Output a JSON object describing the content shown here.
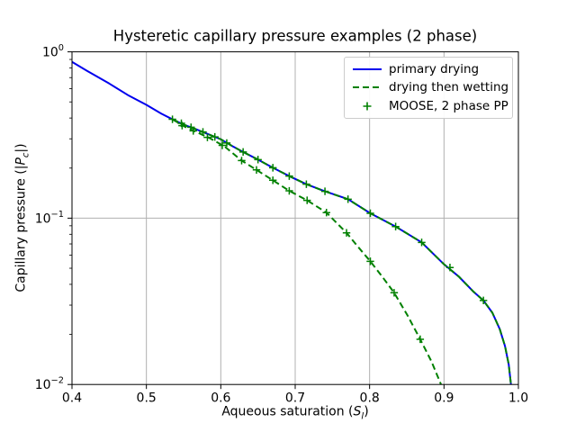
{
  "chart_data": {
    "type": "line",
    "title": "Hysteretic capillary pressure examples (2 phase)",
    "xlabel": {
      "prefix": "Aqueous saturation (",
      "var": "S",
      "sub": "l",
      "suffix": ")"
    },
    "ylabel": {
      "prefix": "Capillary pressure (|",
      "var": "P",
      "sub": "c",
      "suffix": "|)"
    },
    "grid": true,
    "x_axis": {
      "scale": "linear",
      "min": 0.4,
      "max": 1.0,
      "ticks": [
        0.4,
        0.5,
        0.6,
        0.7,
        0.8,
        0.9,
        1.0
      ],
      "tick_labels": [
        "0.4",
        "0.5",
        "0.6",
        "0.7",
        "0.8",
        "0.9",
        "1.0"
      ]
    },
    "y_axis": {
      "scale": "log",
      "min": 0.01,
      "max": 1.0,
      "ticks": [
        {
          "value": 1,
          "base": "10",
          "exp": "0"
        },
        {
          "value": 0.1,
          "base": "10",
          "exp": "−1"
        },
        {
          "value": 0.01,
          "base": "10",
          "exp": "−2"
        }
      ]
    },
    "legend": {
      "position": "upper right",
      "entries": [
        {
          "label": "primary drying",
          "color": "#0000ee",
          "style": "solid-line"
        },
        {
          "label": "drying then wetting",
          "color": "#008000",
          "style": "dashed-line"
        },
        {
          "label": "MOOSE, 2 phase PP",
          "color": "#008000",
          "style": "plus-marker"
        }
      ]
    },
    "series": [
      {
        "name": "primary drying",
        "type": "line",
        "style": "solid",
        "color": "#0000ee",
        "width": 2,
        "points": [
          [
            0.4,
            0.87
          ],
          [
            0.42,
            0.77
          ],
          [
            0.45,
            0.645
          ],
          [
            0.475,
            0.55
          ],
          [
            0.5,
            0.48
          ],
          [
            0.52,
            0.425
          ],
          [
            0.535,
            0.393
          ],
          [
            0.55,
            0.365
          ],
          [
            0.565,
            0.345
          ],
          [
            0.58,
            0.324
          ],
          [
            0.6,
            0.298
          ],
          [
            0.615,
            0.272
          ],
          [
            0.63,
            0.25
          ],
          [
            0.65,
            0.225
          ],
          [
            0.67,
            0.201
          ],
          [
            0.692,
            0.179
          ],
          [
            0.715,
            0.16
          ],
          [
            0.74,
            0.145
          ],
          [
            0.771,
            0.13
          ],
          [
            0.801,
            0.107
          ],
          [
            0.835,
            0.089
          ],
          [
            0.87,
            0.0715
          ],
          [
            0.9,
            0.0528
          ],
          [
            0.92,
            0.0445
          ],
          [
            0.94,
            0.036
          ],
          [
            0.953,
            0.032
          ],
          [
            0.965,
            0.027
          ],
          [
            0.975,
            0.0215
          ],
          [
            0.982,
            0.017
          ],
          [
            0.987,
            0.0132
          ],
          [
            0.99,
            0.01
          ]
        ]
      },
      {
        "name": "drying then wetting",
        "type": "line",
        "style": "dashed",
        "color": "#008000",
        "width": 2,
        "turning_point": [
          0.535,
          0.393
        ],
        "segments": [
          [
            [
              0.535,
              0.393
            ],
            [
              0.55,
              0.365
            ],
            [
              0.565,
              0.345
            ],
            [
              0.58,
              0.324
            ],
            [
              0.6,
              0.298
            ],
            [
              0.615,
              0.272
            ],
            [
              0.63,
              0.25
            ],
            [
              0.65,
              0.225
            ],
            [
              0.67,
              0.201
            ],
            [
              0.692,
              0.179
            ],
            [
              0.715,
              0.16
            ],
            [
              0.74,
              0.145
            ],
            [
              0.771,
              0.13
            ],
            [
              0.801,
              0.107
            ],
            [
              0.835,
              0.089
            ],
            [
              0.87,
              0.0715
            ],
            [
              0.9,
              0.0528
            ],
            [
              0.92,
              0.0445
            ],
            [
              0.94,
              0.036
            ],
            [
              0.953,
              0.032
            ],
            [
              0.965,
              0.027
            ],
            [
              0.975,
              0.0215
            ],
            [
              0.982,
              0.017
            ],
            [
              0.987,
              0.0132
            ],
            [
              0.99,
              0.01
            ]
          ],
          [
            [
              0.535,
              0.393
            ],
            [
              0.55,
              0.358
            ],
            [
              0.565,
              0.333
            ],
            [
              0.585,
              0.303
            ],
            [
              0.605,
              0.27
            ],
            [
              0.628,
              0.222
            ],
            [
              0.648,
              0.195
            ],
            [
              0.67,
              0.169
            ],
            [
              0.692,
              0.146
            ],
            [
              0.716,
              0.128
            ],
            [
              0.742,
              0.108
            ],
            [
              0.769,
              0.0816
            ],
            [
              0.785,
              0.0668
            ],
            [
              0.801,
              0.055
            ],
            [
              0.817,
              0.0445
            ],
            [
              0.833,
              0.0356
            ],
            [
              0.851,
              0.026
            ],
            [
              0.868,
              0.0187
            ],
            [
              0.883,
              0.0138
            ],
            [
              0.896,
              0.01
            ]
          ]
        ]
      },
      {
        "name": "MOOSE, 2 phase PP",
        "type": "scatter",
        "marker": "plus",
        "color": "#008000",
        "points": [
          [
            0.535,
            0.393
          ],
          [
            0.547,
            0.372
          ],
          [
            0.56,
            0.352
          ],
          [
            0.576,
            0.33
          ],
          [
            0.592,
            0.308
          ],
          [
            0.608,
            0.283
          ],
          [
            0.63,
            0.25
          ],
          [
            0.65,
            0.225
          ],
          [
            0.67,
            0.201
          ],
          [
            0.692,
            0.179
          ],
          [
            0.715,
            0.16
          ],
          [
            0.74,
            0.145
          ],
          [
            0.771,
            0.13
          ],
          [
            0.801,
            0.107
          ],
          [
            0.835,
            0.089
          ],
          [
            0.87,
            0.0715
          ],
          [
            0.908,
            0.0505
          ],
          [
            0.953,
            0.032
          ],
          [
            0.548,
            0.36
          ],
          [
            0.563,
            0.335
          ],
          [
            0.582,
            0.306
          ],
          [
            0.602,
            0.274
          ],
          [
            0.628,
            0.222
          ],
          [
            0.648,
            0.195
          ],
          [
            0.67,
            0.169
          ],
          [
            0.692,
            0.146
          ],
          [
            0.716,
            0.128
          ],
          [
            0.742,
            0.108
          ],
          [
            0.769,
            0.0816
          ],
          [
            0.801,
            0.055
          ],
          [
            0.833,
            0.0356
          ],
          [
            0.868,
            0.0187
          ]
        ]
      }
    ],
    "colors": {
      "grid": "#b0b0b0",
      "spine": "#000000",
      "background": "#ffffff"
    }
  }
}
